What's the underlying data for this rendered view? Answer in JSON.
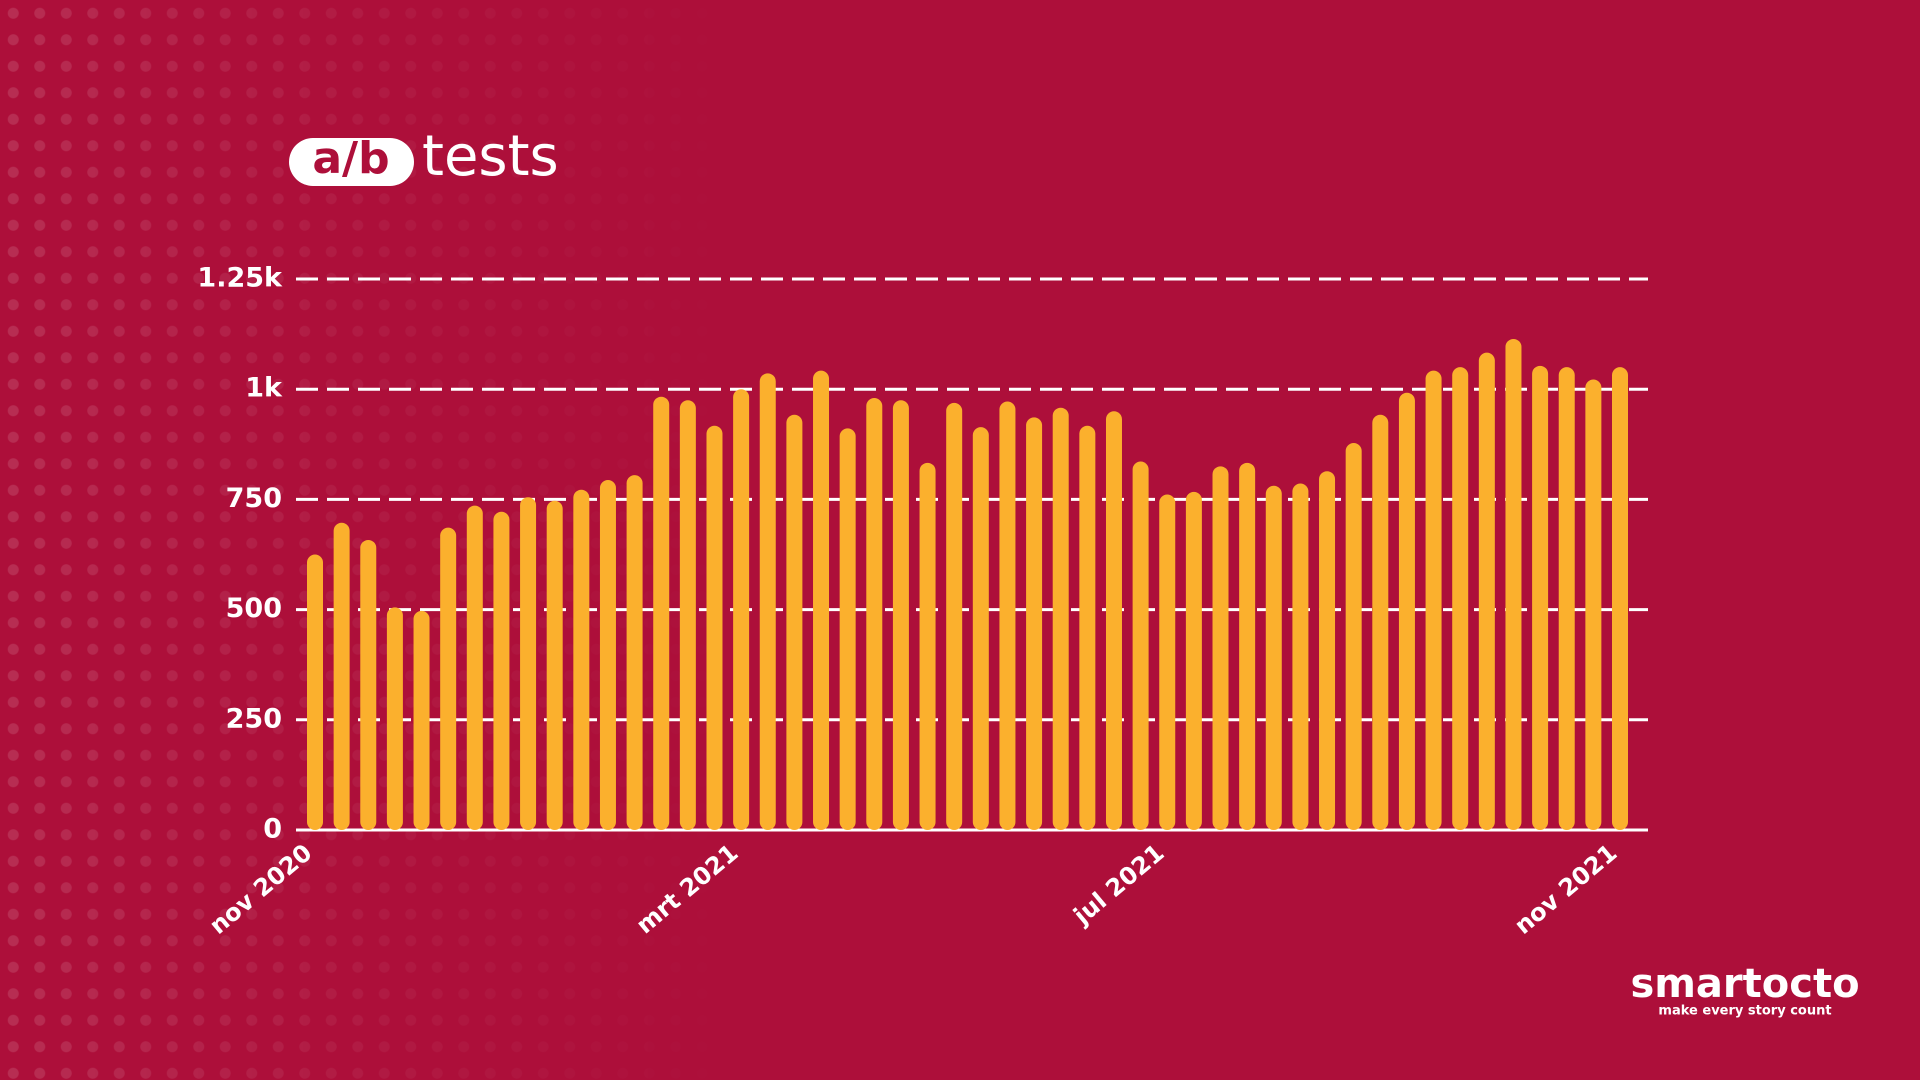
{
  "header": {
    "badge": "a/b",
    "word": "tests"
  },
  "chart_data": {
    "type": "bar",
    "categories": [
      "nov 2020",
      null,
      null,
      null,
      null,
      null,
      null,
      null,
      null,
      null,
      null,
      null,
      null,
      null,
      null,
      null,
      "mrt 2021",
      null,
      null,
      null,
      null,
      null,
      null,
      null,
      null,
      null,
      null,
      null,
      null,
      null,
      null,
      null,
      "jul 2021",
      null,
      null,
      null,
      null,
      null,
      null,
      null,
      null,
      null,
      null,
      null,
      null,
      null,
      null,
      null,
      null,
      "nov 2021"
    ],
    "values": [
      625,
      697,
      658,
      505,
      497,
      686,
      736,
      722,
      755,
      747,
      772,
      794,
      805,
      983,
      975,
      917,
      1000,
      1036,
      942,
      1042,
      911,
      980,
      975,
      833,
      969,
      914,
      972,
      936,
      958,
      917,
      950,
      836,
      761,
      767,
      825,
      833,
      781,
      786,
      814,
      878,
      942,
      992,
      1042,
      1050,
      1083,
      1114,
      1053,
      1050,
      1022,
      1050
    ],
    "color": "#fbb02d",
    "ylim": [
      0,
      1250
    ],
    "yticks": [
      0,
      250,
      500,
      750,
      {
        "value": 1000,
        "label": "1k"
      },
      {
        "value": 1250,
        "label": "1.25k"
      }
    ],
    "grid": true
  },
  "branding": {
    "name": "smartocto",
    "tagline": "make every story count"
  }
}
